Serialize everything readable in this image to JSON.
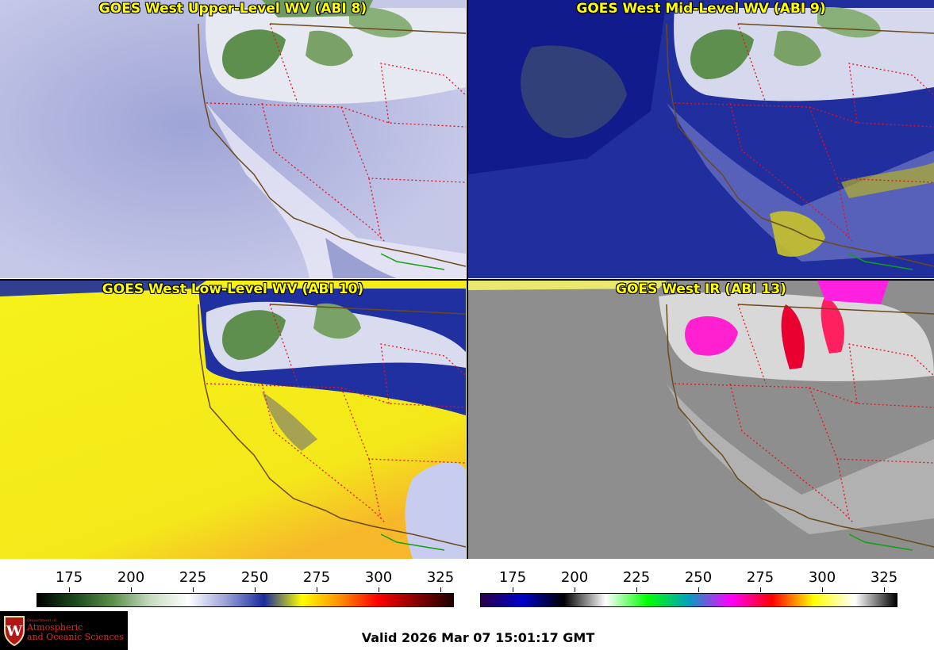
{
  "panels": [
    {
      "title": "GOES West Upper-Level WV (ABI 8)",
      "bg": "#c9cbe8"
    },
    {
      "title": "GOES West Mid-Level WV (ABI 9)",
      "bg": "#1b2b9c"
    },
    {
      "title": "GOES West Low-Level WV (ABI 10)",
      "bg": "#f2ee1c"
    },
    {
      "title": "GOES West IR (ABI 13)",
      "bg": "#909090"
    }
  ],
  "wv_colorbar": {
    "ticks": [
      "175",
      "200",
      "225",
      "250",
      "275",
      "300",
      "325"
    ],
    "colors": [
      "#000000",
      "#1d4a1d",
      "#5a8f4a",
      "#c8dcc0",
      "#ffffff",
      "#9aa0d8",
      "#1b2b9c",
      "#ffff00",
      "#ff9000",
      "#ff0000",
      "#8a0000",
      "#200000"
    ]
  },
  "ir_colorbar": {
    "ticks": [
      "175",
      "200",
      "225",
      "250",
      "275",
      "300",
      "325"
    ],
    "colors": [
      "#2a004a",
      "#0000c8",
      "#000000",
      "#ffffff",
      "#00ff00",
      "#00a0c0",
      "#ff00ff",
      "#ff0000",
      "#ffff00",
      "#ffffff",
      "#000000"
    ]
  },
  "logo": {
    "dept": "Department of",
    "line1": "Atmospheric",
    "line2": "and Oceanic Sciences"
  },
  "valid_time": "Valid 2026 Mar 07 15:01:17 GMT"
}
